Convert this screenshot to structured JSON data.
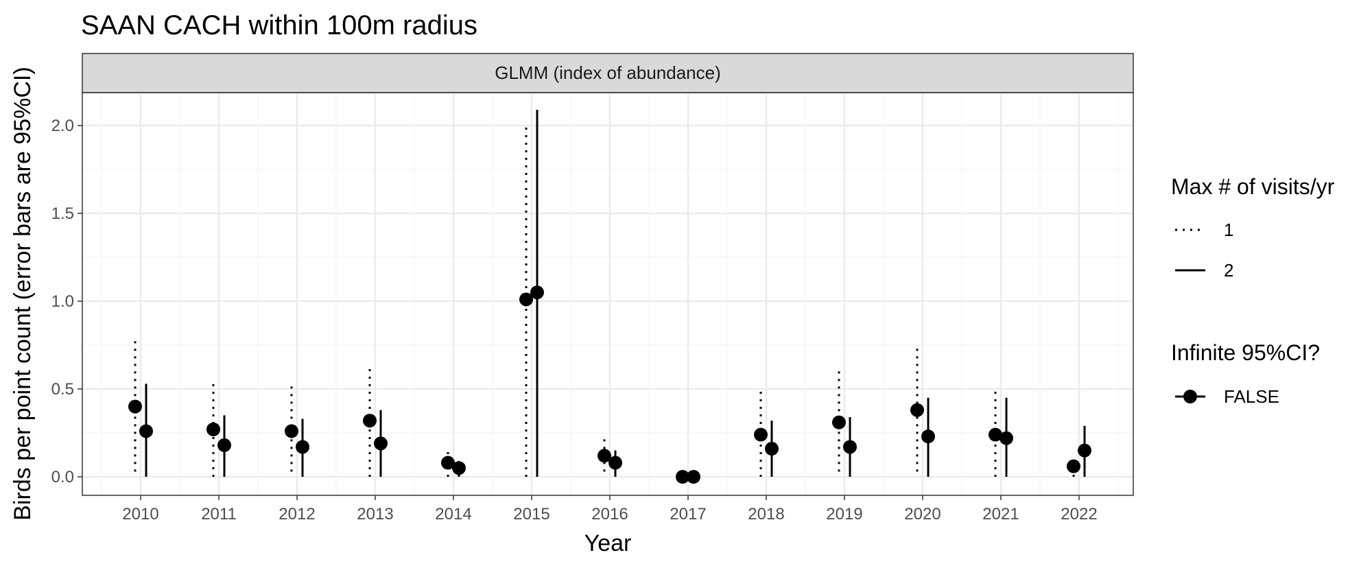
{
  "chart_data": {
    "type": "scatter",
    "title": "SAAN CACH within 100m radius",
    "facet_label": "GLMM (index of abundance)",
    "xlabel": "Year",
    "ylabel": "Birds per point count (error bars are 95%CI)",
    "categories": [
      "2010",
      "2011",
      "2012",
      "2013",
      "2014",
      "2015",
      "2016",
      "2017",
      "2018",
      "2019",
      "2020",
      "2021",
      "2022"
    ],
    "ylim": [
      -0.1,
      2.2
    ],
    "y_ticks": [
      0.0,
      0.5,
      1.0,
      1.5,
      2.0
    ],
    "y_tick_labels": [
      "0.0",
      "0.5",
      "1.0",
      "1.5",
      "2.0"
    ],
    "grid": true,
    "series": [
      {
        "name": "1",
        "linetype": "dotted",
        "values": [
          0.4,
          0.27,
          0.26,
          0.32,
          0.08,
          1.01,
          0.12,
          0.0,
          0.24,
          0.31,
          0.38,
          0.24,
          0.06
        ],
        "lower": [
          0.03,
          0.0,
          0.03,
          0.0,
          0.0,
          0.0,
          0.03,
          0.0,
          0.0,
          0.03,
          0.03,
          0.0,
          0.0
        ],
        "upper": [
          0.8,
          0.53,
          0.52,
          0.63,
          0.17,
          2.02,
          0.24,
          0.0,
          0.49,
          0.62,
          0.76,
          0.49,
          0.12
        ]
      },
      {
        "name": "2",
        "linetype": "solid",
        "values": [
          0.26,
          0.18,
          0.17,
          0.19,
          0.05,
          1.05,
          0.08,
          0.0,
          0.16,
          0.17,
          0.23,
          0.22,
          0.15
        ],
        "lower": [
          0.0,
          0.0,
          0.0,
          0.0,
          0.0,
          0.0,
          0.0,
          0.0,
          0.0,
          0.0,
          0.0,
          0.0,
          0.0
        ],
        "upper": [
          0.53,
          0.35,
          0.33,
          0.38,
          0.09,
          2.09,
          0.15,
          0.0,
          0.32,
          0.34,
          0.45,
          0.45,
          0.29
        ]
      }
    ],
    "legend": {
      "placement": "right",
      "linetype_title": "Max # of visits/yr",
      "linetype_items": [
        {
          "label": "1",
          "linetype": "dotted"
        },
        {
          "label": "2",
          "linetype": "solid"
        }
      ],
      "shape_title": "Infinite 95%CI?",
      "shape_items": [
        {
          "label": "FALSE"
        }
      ]
    },
    "colors": {
      "strip_bg": "#d9d9d9",
      "grid_major": "#ebebeb",
      "grid_minor": "#f5f5f5",
      "panel_border": "#333333",
      "ink": "#000000"
    }
  }
}
